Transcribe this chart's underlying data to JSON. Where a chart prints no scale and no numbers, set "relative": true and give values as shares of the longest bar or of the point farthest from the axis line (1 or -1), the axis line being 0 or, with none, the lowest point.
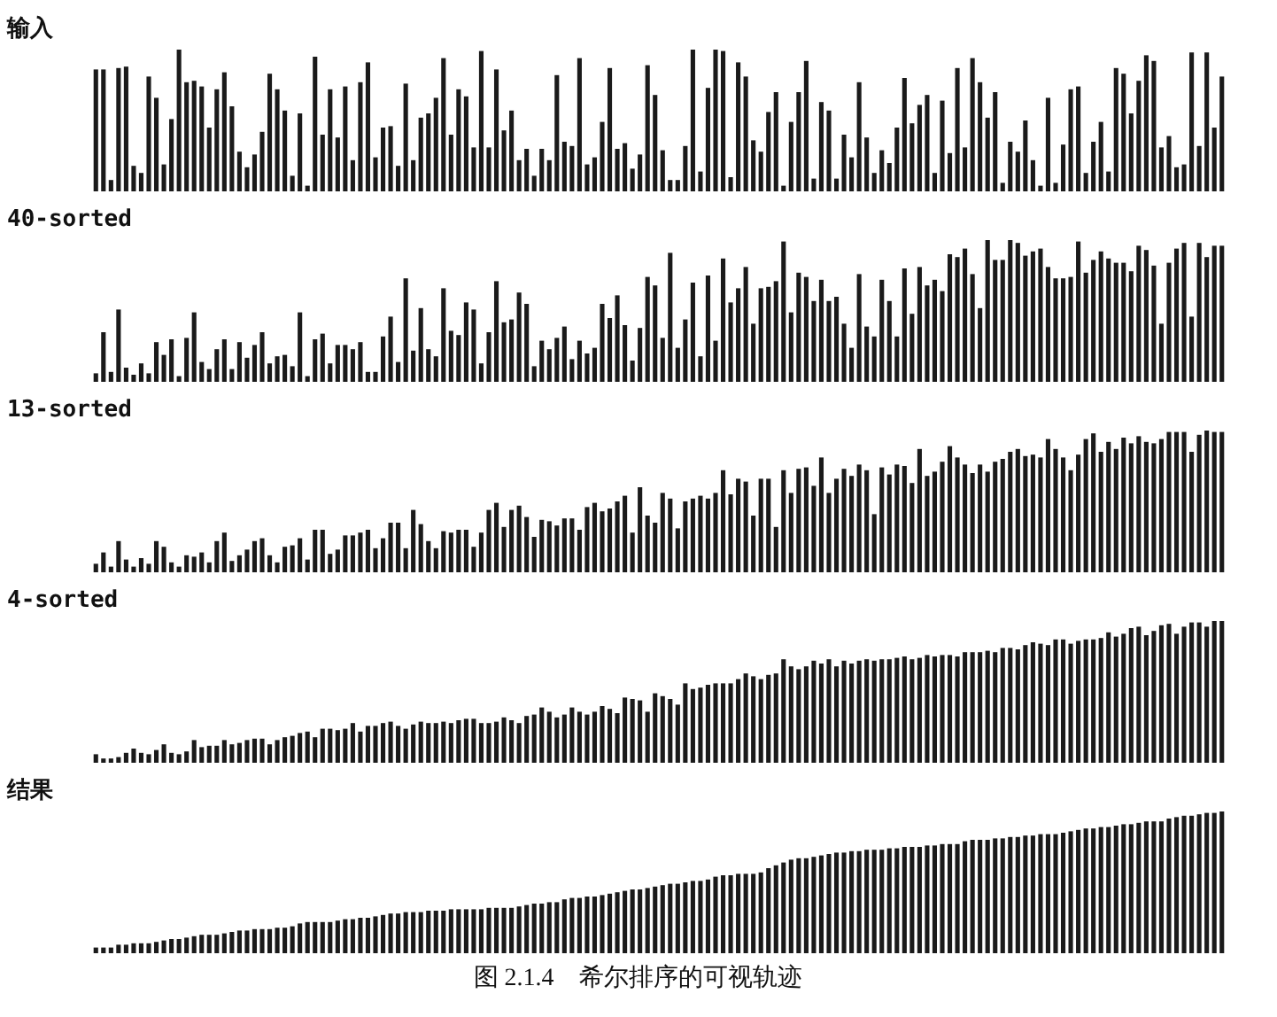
{
  "chart_data": [
    {
      "type": "bar",
      "title": "输入",
      "relative": true,
      "color": "#1a1a1a",
      "categories": [
        null,
        null,
        null,
        null,
        null,
        null,
        null,
        null,
        null,
        null,
        null,
        null,
        null,
        null,
        null,
        null,
        null,
        null,
        null,
        null,
        null,
        null,
        null,
        null,
        null,
        null,
        null,
        null,
        null,
        null,
        null,
        null,
        null,
        null,
        null,
        null,
        null,
        null,
        null,
        null,
        null,
        null,
        null,
        null,
        null,
        null,
        null,
        null,
        null,
        null,
        null,
        null,
        null,
        null,
        null,
        null,
        null,
        null,
        null,
        null,
        null,
        null,
        null,
        null,
        null,
        null,
        null,
        null,
        null,
        null,
        null,
        null,
        null,
        null,
        null,
        null,
        null,
        null,
        null,
        null,
        null,
        null,
        null,
        null,
        null,
        null,
        null,
        null,
        null,
        null,
        null,
        null,
        null,
        null,
        null,
        null,
        null,
        null,
        null,
        null,
        null,
        null,
        null,
        null,
        null,
        null,
        null,
        null,
        null,
        null,
        null,
        null,
        null,
        null,
        null,
        null,
        null,
        null,
        null,
        null,
        null,
        null,
        null,
        null,
        null,
        null,
        null,
        null,
        null,
        null,
        null,
        null,
        null,
        null,
        null,
        null,
        null,
        null,
        null,
        null,
        null,
        null,
        null,
        null,
        null,
        null,
        null,
        null,
        null,
        null
      ],
      "values": [
        0.86,
        0.86,
        0.08,
        0.87,
        0.88,
        0.18,
        0.13,
        0.81,
        0.66,
        0.19,
        0.51,
        1.0,
        0.77,
        0.78,
        0.74,
        0.45,
        0.72,
        0.84,
        0.6,
        0.28,
        0.17,
        0.26,
        0.42,
        0.83,
        0.72,
        0.57,
        0.11,
        0.55,
        0.04,
        0.95,
        0.4,
        0.72,
        0.38,
        0.74,
        0.22,
        0.77,
        0.91,
        0.24,
        0.45,
        0.46,
        0.18,
        0.76,
        0.22,
        0.52,
        0.55,
        0.66,
        0.94,
        0.4,
        0.72,
        0.67,
        0.31,
        0.99,
        0.31,
        0.86,
        0.43,
        0.57,
        0.22,
        0.3,
        0.11,
        0.3,
        0.22,
        0.82,
        0.35,
        0.32,
        0.94,
        0.19,
        0.24,
        0.49,
        0.87,
        0.3,
        0.34,
        0.16,
        0.26,
        0.89,
        0.68,
        0.29,
        0.08,
        0.08,
        0.32,
        1.0,
        0.14,
        0.73,
        1.0,
        0.99,
        0.1,
        0.91,
        0.81,
        0.36,
        0.28,
        0.56,
        0.7,
        0.04,
        0.49,
        0.7,
        0.92,
        0.09,
        0.63,
        0.57,
        0.09,
        0.4,
        0.24,
        0.77,
        0.38,
        0.13,
        0.29,
        0.2,
        0.45,
        0.8,
        0.48,
        0.61,
        0.68,
        0.13,
        0.64,
        0.27,
        0.87,
        0.31,
        0.94,
        0.77,
        0.52,
        0.7,
        0.06,
        0.35,
        0.28,
        0.5,
        0.22,
        0.04,
        0.66,
        0.06,
        0.33,
        0.72,
        0.74,
        0.13,
        0.35,
        0.49,
        0.14,
        0.87,
        0.83,
        0.55,
        0.78,
        0.96,
        0.92,
        0.31,
        0.39,
        0.17,
        0.19,
        0.98,
        0.32,
        0.98,
        0.45,
        0.81
      ]
    },
    {
      "type": "bar",
      "title": "40-sorted",
      "relative": true,
      "color": "#1a1a1a",
      "categories": [
        null,
        null,
        null,
        null,
        null,
        null,
        null,
        null,
        null,
        null,
        null,
        null,
        null,
        null,
        null,
        null,
        null,
        null,
        null,
        null,
        null,
        null,
        null,
        null,
        null,
        null,
        null,
        null,
        null,
        null,
        null,
        null,
        null,
        null,
        null,
        null,
        null,
        null,
        null,
        null,
        null,
        null,
        null,
        null,
        null,
        null,
        null,
        null,
        null,
        null,
        null,
        null,
        null,
        null,
        null,
        null,
        null,
        null,
        null,
        null,
        null,
        null,
        null,
        null,
        null,
        null,
        null,
        null,
        null,
        null,
        null,
        null,
        null,
        null,
        null,
        null,
        null,
        null,
        null,
        null,
        null,
        null,
        null,
        null,
        null,
        null,
        null,
        null,
        null,
        null,
        null,
        null,
        null,
        null,
        null,
        null,
        null,
        null,
        null,
        null,
        null,
        null,
        null,
        null,
        null,
        null,
        null,
        null,
        null,
        null,
        null,
        null,
        null,
        null,
        null,
        null,
        null,
        null,
        null,
        null,
        null,
        null,
        null,
        null,
        null,
        null,
        null,
        null,
        null,
        null,
        null,
        null,
        null,
        null,
        null,
        null,
        null,
        null,
        null,
        null,
        null,
        null,
        null,
        null,
        null,
        null,
        null,
        null,
        null,
        null
      ],
      "values": [
        0.06,
        0.35,
        0.07,
        0.51,
        0.1,
        0.05,
        0.13,
        0.06,
        0.28,
        0.19,
        0.3,
        0.04,
        0.31,
        0.49,
        0.14,
        0.09,
        0.23,
        0.3,
        0.09,
        0.28,
        0.17,
        0.26,
        0.35,
        0.13,
        0.18,
        0.19,
        0.11,
        0.49,
        0.04,
        0.3,
        0.34,
        0.13,
        0.26,
        0.26,
        0.23,
        0.28,
        0.07,
        0.07,
        0.32,
        0.46,
        0.14,
        0.73,
        0.22,
        0.52,
        0.23,
        0.18,
        0.66,
        0.36,
        0.33,
        0.56,
        0.51,
        0.13,
        0.35,
        0.71,
        0.42,
        0.44,
        0.63,
        0.55,
        0.11,
        0.29,
        0.23,
        0.31,
        0.39,
        0.16,
        0.29,
        0.2,
        0.24,
        0.55,
        0.45,
        0.61,
        0.4,
        0.15,
        0.38,
        0.74,
        0.68,
        0.31,
        0.91,
        0.24,
        0.44,
        0.7,
        0.18,
        0.75,
        0.29,
        0.87,
        0.56,
        0.66,
        0.81,
        0.41,
        0.66,
        0.67,
        0.71,
        0.99,
        0.49,
        0.77,
        0.74,
        0.57,
        0.72,
        0.57,
        0.6,
        0.41,
        0.24,
        0.76,
        0.39,
        0.32,
        0.72,
        0.57,
        0.32,
        0.8,
        0.48,
        0.81,
        0.68,
        0.72,
        0.64,
        0.9,
        0.88,
        0.94,
        0.76,
        0.52,
        1.0,
        0.86,
        0.86,
        1.0,
        0.98,
        0.89,
        0.92,
        0.94,
        0.81,
        0.73,
        0.73,
        0.74,
        0.99,
        0.77,
        0.86,
        0.92,
        0.87,
        0.84,
        0.84,
        0.78,
        0.96,
        0.93,
        0.82,
        0.41,
        0.84,
        0.94,
        0.98,
        0.46,
        0.98,
        0.88,
        0.96,
        0.96
      ]
    },
    {
      "type": "bar",
      "title": "13-sorted",
      "relative": true,
      "color": "#1a1a1a",
      "categories": [
        null,
        null,
        null,
        null,
        null,
        null,
        null,
        null,
        null,
        null,
        null,
        null,
        null,
        null,
        null,
        null,
        null,
        null,
        null,
        null,
        null,
        null,
        null,
        null,
        null,
        null,
        null,
        null,
        null,
        null,
        null,
        null,
        null,
        null,
        null,
        null,
        null,
        null,
        null,
        null,
        null,
        null,
        null,
        null,
        null,
        null,
        null,
        null,
        null,
        null,
        null,
        null,
        null,
        null,
        null,
        null,
        null,
        null,
        null,
        null,
        null,
        null,
        null,
        null,
        null,
        null,
        null,
        null,
        null,
        null,
        null,
        null,
        null,
        null,
        null,
        null,
        null,
        null,
        null,
        null,
        null,
        null,
        null,
        null,
        null,
        null,
        null,
        null,
        null,
        null,
        null,
        null,
        null,
        null,
        null,
        null,
        null,
        null,
        null,
        null,
        null,
        null,
        null,
        null,
        null,
        null,
        null,
        null,
        null,
        null,
        null,
        null,
        null,
        null,
        null,
        null,
        null,
        null,
        null,
        null,
        null,
        null,
        null,
        null,
        null,
        null,
        null,
        null,
        null,
        null,
        null,
        null,
        null,
        null,
        null,
        null,
        null,
        null,
        null,
        null,
        null,
        null,
        null,
        null,
        null,
        null,
        null,
        null,
        null,
        null
      ],
      "values": [
        0.06,
        0.14,
        0.04,
        0.22,
        0.09,
        0.04,
        0.1,
        0.06,
        0.22,
        0.18,
        0.07,
        0.04,
        0.12,
        0.11,
        0.14,
        0.07,
        0.22,
        0.28,
        0.08,
        0.12,
        0.16,
        0.22,
        0.24,
        0.12,
        0.07,
        0.18,
        0.19,
        0.24,
        0.09,
        0.3,
        0.3,
        0.13,
        0.16,
        0.26,
        0.26,
        0.28,
        0.3,
        0.17,
        0.24,
        0.35,
        0.35,
        0.17,
        0.44,
        0.34,
        0.22,
        0.17,
        0.29,
        0.28,
        0.3,
        0.3,
        0.18,
        0.28,
        0.44,
        0.49,
        0.32,
        0.44,
        0.47,
        0.39,
        0.25,
        0.37,
        0.36,
        0.33,
        0.38,
        0.38,
        0.3,
        0.46,
        0.49,
        0.43,
        0.45,
        0.5,
        0.54,
        0.28,
        0.6,
        0.4,
        0.35,
        0.56,
        0.52,
        0.31,
        0.5,
        0.52,
        0.54,
        0.52,
        0.56,
        0.72,
        0.55,
        0.66,
        0.64,
        0.4,
        0.66,
        0.66,
        0.32,
        0.72,
        0.56,
        0.73,
        0.74,
        0.61,
        0.81,
        0.56,
        0.66,
        0.73,
        0.68,
        0.76,
        0.72,
        0.41,
        0.74,
        0.69,
        0.76,
        0.75,
        0.63,
        0.87,
        0.68,
        0.71,
        0.78,
        0.89,
        0.81,
        0.76,
        0.7,
        0.76,
        0.71,
        0.78,
        0.8,
        0.85,
        0.87,
        0.82,
        0.83,
        0.81,
        0.94,
        0.87,
        0.81,
        0.72,
        0.83,
        0.94,
        0.98,
        0.85,
        0.92,
        0.87,
        0.95,
        0.91,
        0.96,
        0.92,
        0.91,
        0.94,
        0.99,
        0.99,
        0.99,
        0.85,
        0.97,
        1.0,
        0.99,
        0.99
      ]
    },
    {
      "type": "bar",
      "title": "4-sorted",
      "relative": true,
      "color": "#1a1a1a",
      "categories": [
        null,
        null,
        null,
        null,
        null,
        null,
        null,
        null,
        null,
        null,
        null,
        null,
        null,
        null,
        null,
        null,
        null,
        null,
        null,
        null,
        null,
        null,
        null,
        null,
        null,
        null,
        null,
        null,
        null,
        null,
        null,
        null,
        null,
        null,
        null,
        null,
        null,
        null,
        null,
        null,
        null,
        null,
        null,
        null,
        null,
        null,
        null,
        null,
        null,
        null,
        null,
        null,
        null,
        null,
        null,
        null,
        null,
        null,
        null,
        null,
        null,
        null,
        null,
        null,
        null,
        null,
        null,
        null,
        null,
        null,
        null,
        null,
        null,
        null,
        null,
        null,
        null,
        null,
        null,
        null,
        null,
        null,
        null,
        null,
        null,
        null,
        null,
        null,
        null,
        null,
        null,
        null,
        null,
        null,
        null,
        null,
        null,
        null,
        null,
        null,
        null,
        null,
        null,
        null,
        null,
        null,
        null,
        null,
        null,
        null,
        null,
        null,
        null,
        null,
        null,
        null,
        null,
        null,
        null,
        null,
        null,
        null,
        null,
        null,
        null,
        null,
        null,
        null,
        null,
        null,
        null,
        null,
        null,
        null,
        null,
        null,
        null,
        null,
        null,
        null,
        null,
        null,
        null,
        null,
        null,
        null,
        null,
        null,
        null,
        null
      ],
      "values": [
        0.06,
        0.03,
        0.03,
        0.04,
        0.07,
        0.1,
        0.07,
        0.06,
        0.09,
        0.13,
        0.07,
        0.06,
        0.08,
        0.16,
        0.11,
        0.12,
        0.12,
        0.16,
        0.13,
        0.14,
        0.16,
        0.17,
        0.17,
        0.13,
        0.16,
        0.18,
        0.19,
        0.21,
        0.22,
        0.18,
        0.24,
        0.24,
        0.23,
        0.24,
        0.28,
        0.22,
        0.26,
        0.26,
        0.28,
        0.29,
        0.26,
        0.24,
        0.27,
        0.29,
        0.28,
        0.28,
        0.29,
        0.28,
        0.3,
        0.31,
        0.31,
        0.28,
        0.28,
        0.29,
        0.32,
        0.3,
        0.28,
        0.33,
        0.34,
        0.39,
        0.36,
        0.32,
        0.34,
        0.39,
        0.36,
        0.34,
        0.36,
        0.4,
        0.38,
        0.35,
        0.46,
        0.45,
        0.44,
        0.36,
        0.49,
        0.47,
        0.45,
        0.41,
        0.56,
        0.52,
        0.53,
        0.55,
        0.56,
        0.56,
        0.56,
        0.59,
        0.63,
        0.61,
        0.59,
        0.62,
        0.63,
        0.73,
        0.68,
        0.66,
        0.68,
        0.72,
        0.7,
        0.73,
        0.68,
        0.72,
        0.7,
        0.72,
        0.73,
        0.72,
        0.73,
        0.73,
        0.74,
        0.75,
        0.73,
        0.74,
        0.76,
        0.75,
        0.76,
        0.76,
        0.75,
        0.78,
        0.78,
        0.78,
        0.79,
        0.78,
        0.81,
        0.81,
        0.8,
        0.83,
        0.85,
        0.84,
        0.83,
        0.87,
        0.87,
        0.84,
        0.86,
        0.87,
        0.87,
        0.88,
        0.92,
        0.89,
        0.91,
        0.95,
        0.96,
        0.9,
        0.93,
        0.97,
        0.98,
        0.91,
        0.96,
        0.99,
        0.99,
        0.96,
        1.0,
        1.0
      ]
    },
    {
      "type": "bar",
      "title": "结果",
      "relative": true,
      "color": "#1a1a1a",
      "annotations": [
        "图 2.1.4　希尔排序的可视轨迹"
      ],
      "categories": [
        null,
        null,
        null,
        null,
        null,
        null,
        null,
        null,
        null,
        null,
        null,
        null,
        null,
        null,
        null,
        null,
        null,
        null,
        null,
        null,
        null,
        null,
        null,
        null,
        null,
        null,
        null,
        null,
        null,
        null,
        null,
        null,
        null,
        null,
        null,
        null,
        null,
        null,
        null,
        null,
        null,
        null,
        null,
        null,
        null,
        null,
        null,
        null,
        null,
        null,
        null,
        null,
        null,
        null,
        null,
        null,
        null,
        null,
        null,
        null,
        null,
        null,
        null,
        null,
        null,
        null,
        null,
        null,
        null,
        null,
        null,
        null,
        null,
        null,
        null,
        null,
        null,
        null,
        null,
        null,
        null,
        null,
        null,
        null,
        null,
        null,
        null,
        null,
        null,
        null,
        null,
        null,
        null,
        null,
        null,
        null,
        null,
        null,
        null,
        null,
        null,
        null,
        null,
        null,
        null,
        null,
        null,
        null,
        null,
        null,
        null,
        null,
        null,
        null,
        null,
        null,
        null,
        null,
        null,
        null,
        null,
        null,
        null,
        null,
        null,
        null,
        null,
        null,
        null,
        null,
        null,
        null,
        null,
        null,
        null,
        null,
        null,
        null,
        null,
        null,
        null,
        null,
        null,
        null,
        null,
        null,
        null,
        null,
        null,
        null
      ],
      "values": [
        0.04,
        0.04,
        0.04,
        0.06,
        0.06,
        0.07,
        0.07,
        0.07,
        0.08,
        0.09,
        0.1,
        0.1,
        0.11,
        0.12,
        0.13,
        0.13,
        0.13,
        0.14,
        0.15,
        0.16,
        0.16,
        0.17,
        0.17,
        0.17,
        0.18,
        0.18,
        0.19,
        0.21,
        0.22,
        0.22,
        0.22,
        0.22,
        0.23,
        0.24,
        0.24,
        0.25,
        0.25,
        0.26,
        0.27,
        0.28,
        0.28,
        0.29,
        0.29,
        0.29,
        0.3,
        0.3,
        0.3,
        0.31,
        0.31,
        0.31,
        0.31,
        0.31,
        0.32,
        0.32,
        0.32,
        0.32,
        0.33,
        0.34,
        0.35,
        0.35,
        0.36,
        0.36,
        0.38,
        0.39,
        0.39,
        0.4,
        0.4,
        0.41,
        0.42,
        0.43,
        0.44,
        0.45,
        0.45,
        0.46,
        0.47,
        0.48,
        0.49,
        0.49,
        0.5,
        0.51,
        0.51,
        0.52,
        0.54,
        0.55,
        0.55,
        0.56,
        0.56,
        0.56,
        0.57,
        0.6,
        0.62,
        0.64,
        0.66,
        0.67,
        0.67,
        0.68,
        0.69,
        0.7,
        0.71,
        0.71,
        0.72,
        0.72,
        0.73,
        0.73,
        0.73,
        0.74,
        0.74,
        0.75,
        0.75,
        0.75,
        0.76,
        0.76,
        0.77,
        0.77,
        0.77,
        0.79,
        0.8,
        0.8,
        0.8,
        0.81,
        0.81,
        0.82,
        0.82,
        0.83,
        0.83,
        0.84,
        0.84,
        0.84,
        0.85,
        0.86,
        0.87,
        0.88,
        0.88,
        0.89,
        0.89,
        0.9,
        0.91,
        0.91,
        0.92,
        0.93,
        0.93,
        0.93,
        0.95,
        0.96,
        0.97,
        0.97,
        0.98,
        0.99,
        0.99,
        1.0
      ]
    }
  ]
}
